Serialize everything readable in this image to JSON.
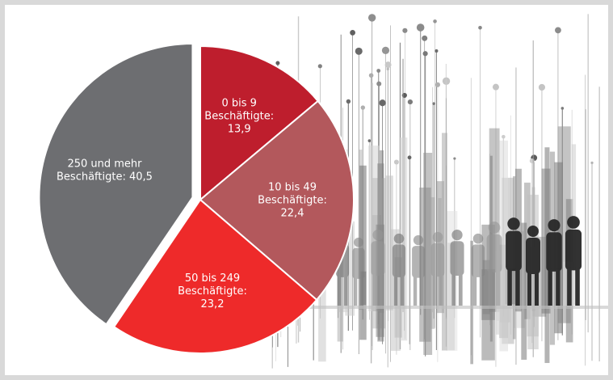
{
  "chart_data": {
    "type": "pie",
    "title": "",
    "slices": [
      {
        "label_lines": [
          "0 bis 9",
          "Beschäftigte:",
          "13,9"
        ],
        "value": 13.9,
        "color": "#be1e2d"
      },
      {
        "label_lines": [
          "10 bis 49",
          "Beschäftigte:",
          "22,4"
        ],
        "value": 22.4,
        "color": "#b3585c"
      },
      {
        "label_lines": [
          "50 bis 249",
          "Beschäftigte:",
          "23,2"
        ],
        "value": 23.2,
        "color": "#ee2a2a"
      },
      {
        "label_lines": [
          "250 und mehr",
          "Beschäftigte: 40,5"
        ],
        "value": 40.5,
        "color": "#6d6e71",
        "exploded": true
      }
    ]
  }
}
